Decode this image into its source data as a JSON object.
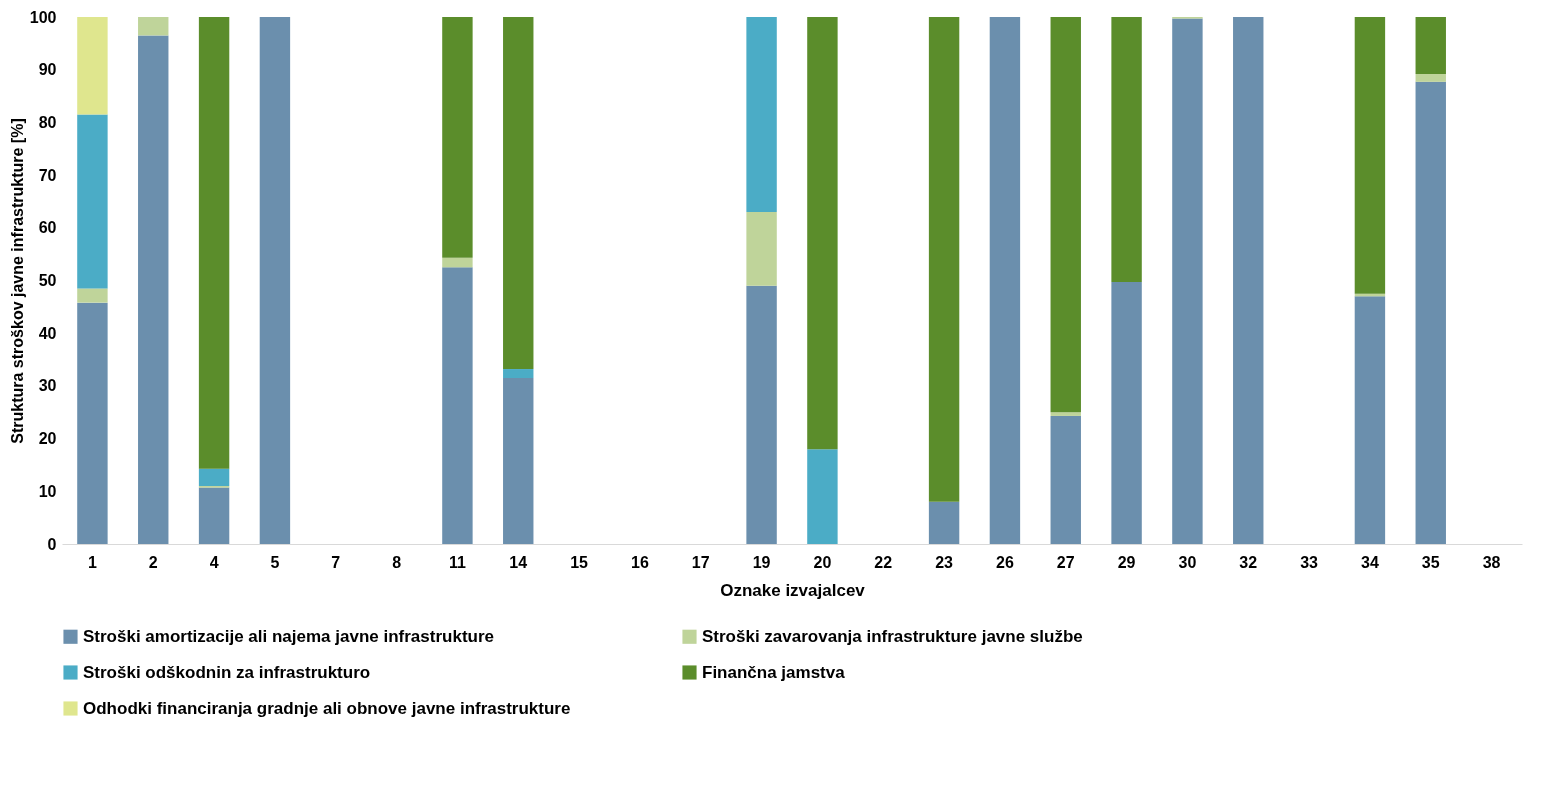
{
  "chart_data": {
    "type": "bar",
    "stacked": true,
    "xlabel": "Oznake izvajalcev",
    "ylabel": "Struktura stroškov javne infrastrukture [%]",
    "categories": [
      "1",
      "2",
      "4",
      "5",
      "7",
      "8",
      "11",
      "14",
      "15",
      "16",
      "17",
      "19",
      "20",
      "22",
      "23",
      "26",
      "27",
      "29",
      "30",
      "32",
      "33",
      "34",
      "35",
      "38"
    ],
    "series": [
      {
        "name": "Stroški amortizacije ali najema javne infrastrukture",
        "color": "#6b8fad",
        "values": [
          45.8,
          96.5,
          10.7,
          100,
          null,
          null,
          52.5,
          31.5,
          null,
          null,
          null,
          49,
          null,
          null,
          8,
          100,
          24.3,
          49.7,
          99.7,
          100,
          null,
          47,
          87.7,
          null
        ]
      },
      {
        "name": "Stroški zavarovanja infrastrukture javne službe",
        "color": "#bfd49a",
        "values": [
          2.7,
          3.5,
          0.3,
          null,
          null,
          null,
          1.8,
          null,
          null,
          null,
          null,
          14,
          null,
          null,
          null,
          null,
          0.7,
          null,
          0.3,
          null,
          null,
          0.5,
          1.5,
          null
        ]
      },
      {
        "name": "Stroški odškodnin za infrastrukturo",
        "color": "#4bacc6",
        "values": [
          33,
          null,
          3.3,
          null,
          null,
          null,
          null,
          1.7,
          null,
          null,
          null,
          37,
          18,
          null,
          null,
          null,
          null,
          null,
          null,
          null,
          null,
          null,
          null,
          null
        ]
      },
      {
        "name": "Finančna jamstva",
        "color": "#5b8d2b",
        "values": [
          null,
          null,
          85.7,
          null,
          null,
          null,
          45.7,
          66.8,
          null,
          null,
          null,
          null,
          82,
          null,
          92,
          null,
          75,
          50.3,
          null,
          null,
          null,
          52.5,
          10.8,
          null
        ]
      },
      {
        "name": "Odhodki financiranja gradnje ali obnove javne infrastrukture",
        "color": "#dfe68e",
        "values": [
          18.5,
          null,
          null,
          null,
          null,
          null,
          null,
          null,
          null,
          null,
          null,
          null,
          null,
          null,
          null,
          null,
          null,
          null,
          null,
          null,
          null,
          null,
          null,
          null
        ]
      }
    ],
    "ylim": [
      0,
      100
    ],
    "yticks": [
      0,
      10,
      20,
      30,
      40,
      50,
      60,
      70,
      80,
      90,
      100
    ],
    "grid": false,
    "legend": "bottom"
  }
}
